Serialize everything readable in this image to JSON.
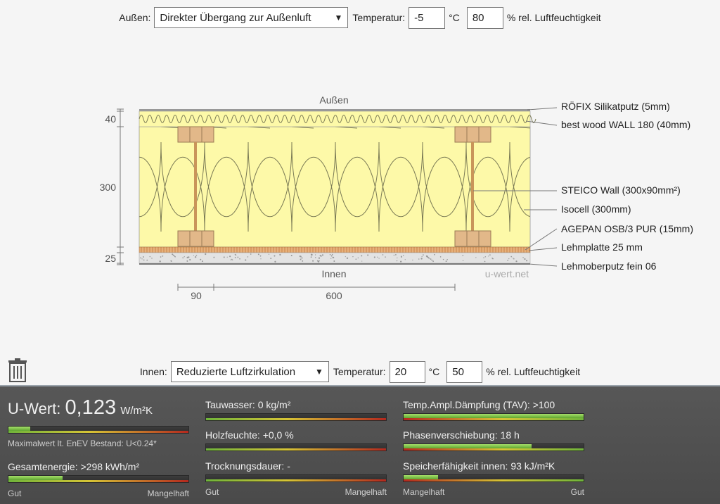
{
  "outside": {
    "label": "Außen:",
    "transition": "Direkter Übergang zur Außenluft",
    "temp_label": "Temperatur:",
    "temperature": "-5",
    "temp_unit": "°C",
    "humidity": "80",
    "humidity_unit": "% rel. Luftfeuchtigkeit"
  },
  "inside": {
    "label": "Innen:",
    "transition": "Reduzierte Luftzirkulation",
    "temp_label": "Temperatur:",
    "temperature": "20",
    "temp_unit": "°C",
    "humidity": "50",
    "humidity_unit": "% rel. Luftfeuchtigkeit"
  },
  "diagram": {
    "top_label": "Außen",
    "bottom_label": "Innen",
    "watermark": "u-wert.net",
    "dim_left": [
      "40",
      "300",
      "25"
    ],
    "dim_bottom": [
      "90",
      "600"
    ],
    "layers": [
      "RÖFIX Silikatputz (5mm)",
      "best wood WALL 180 (40mm)",
      "STEICO  Wall (300x90mm²)",
      "Isocell (300mm)",
      "AGEPAN OSB/3 PUR (15mm)",
      "Lehmplatte 25 mm",
      "Lehmoberputz fein 06"
    ]
  },
  "icons": {
    "delete": "trash-icon",
    "dropdown": "triangle-down-icon"
  },
  "results": {
    "uwert": {
      "label": "U-Wert:",
      "value": "0,123",
      "unit": "W/m²K",
      "fill": 0.12,
      "note": "Maximalwert lt. EnEV Bestand: U<0.24*"
    },
    "gesamtenergie": {
      "label": "Gesamtenergie: >298 kWh/m²",
      "fill": 0.3
    },
    "tauwasser": {
      "label": "Tauwasser: 0 kg/m²",
      "fill": 0.0
    },
    "holzfeuchte": {
      "label": "Holzfeuchte: +0,0 %",
      "fill": 0.0
    },
    "trocknungsdauer": {
      "label": "Trocknungsdauer: -",
      "fill": 0.0
    },
    "tav": {
      "label": "Temp.Ampl.Dämpfung (TAV): >100",
      "fill": 1.0
    },
    "phasen": {
      "label": "Phasenverschiebung: 18 h",
      "fill": 0.71
    },
    "speicher": {
      "label": "Speicherfähigkeit innen: 93 kJ/m²K",
      "fill": 0.19
    },
    "scale_left": {
      "good": "Gut",
      "bad": "Mangelhaft"
    },
    "scale_mid": {
      "good": "Gut",
      "bad": "Mangelhaft"
    },
    "scale_right": {
      "bad": "Mangelhaft",
      "good": "Gut"
    }
  }
}
